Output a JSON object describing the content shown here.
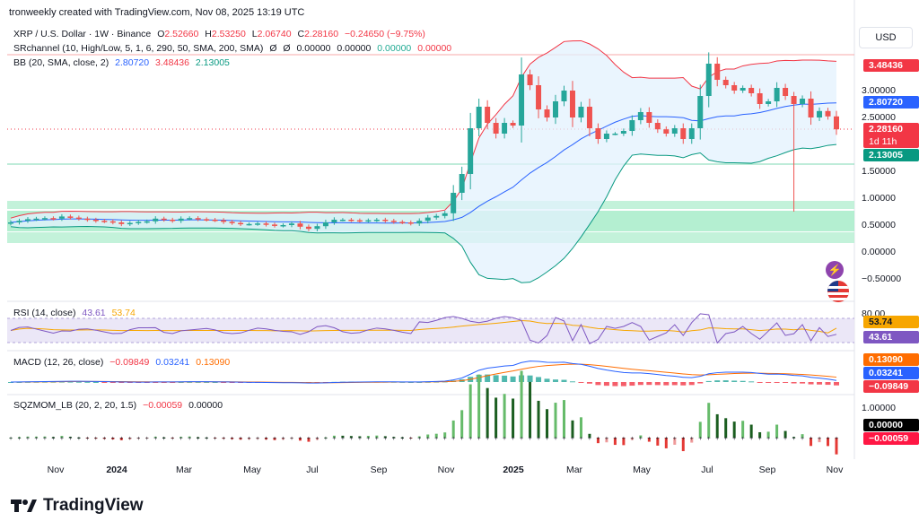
{
  "header": {
    "attribution": "tronweekly created with TradingView.com, Nov 08, 2025 13:19 UTC"
  },
  "legend": {
    "symbol": "XRP / U.S. Dollar · 1W · Binance",
    "ohlc": {
      "o_label": "O",
      "o": "2.52660",
      "h_label": "H",
      "h": "2.53250",
      "l_label": "L",
      "l": "2.06740",
      "c_label": "C",
      "c": "2.28160",
      "change": "−0.24650 (−9.75%)"
    },
    "srchannel": {
      "name": "SRchannel (10, High/Low, 5, 1, 6, 290, 50, SMA, 200, SMA)",
      "v1": "Ø",
      "v2": "Ø",
      "v3": "0.00000",
      "v4": "0.00000",
      "v5": "0.00000",
      "v6": "0.00000"
    },
    "bb": {
      "name": "BB (20, SMA, close, 2)",
      "basis": "2.80720",
      "upper": "3.48436",
      "lower": "2.13005"
    }
  },
  "currency_button": "USD",
  "price_axis": {
    "ticks": [
      "3.00000",
      "2.50000",
      "1.50000",
      "1.00000",
      "0.50000",
      "0.00000",
      "−0.50000"
    ],
    "badges": {
      "upper": "3.48436",
      "basis": "2.80720",
      "price": "2.28160",
      "countdown": "1d 11h",
      "lower": "2.13005"
    }
  },
  "rsi": {
    "label": "RSI (14, close)",
    "value": "43.61",
    "ma": "53.74",
    "tick": "80.00",
    "badge_ma": "53.74",
    "badge_value": "43.61"
  },
  "macd": {
    "label": "MACD (12, 26, close)",
    "hist": "−0.09849",
    "macd": "0.03241",
    "signal": "0.13090",
    "badge_signal": "0.13090",
    "badge_macd": "0.03241",
    "badge_hist": "−0.09849"
  },
  "sqz": {
    "label": "SQZMOM_LB (20, 2, 20, 1.5)",
    "value": "−0.00059",
    "zero": "0.00000",
    "tick": "1.00000",
    "badge_zero": "0.00000",
    "badge_value": "−0.00059"
  },
  "time_axis": {
    "ticks": [
      "Nov",
      "2024",
      "Mar",
      "May",
      "Jul",
      "Sep",
      "Nov",
      "2025",
      "Mar",
      "May",
      "Jul",
      "Sep",
      "Nov"
    ]
  },
  "footer": {
    "brand": "TradingView"
  },
  "colors": {
    "up": "#26a69a",
    "down": "#ef5350",
    "bb_upper": "#f23645",
    "bb_basis": "#2962ff",
    "bb_lower": "#089981",
    "rsi": "#7e57c2",
    "rsi_ma": "#f7a600",
    "macd": "#2962ff",
    "signal": "#ff6d00"
  },
  "chart_data": {
    "type": "candlestick",
    "timeframe": "1W",
    "x_axis_ticks": [
      "Nov",
      "2024",
      "Mar",
      "May",
      "Jul",
      "Sep",
      "Nov",
      "2025",
      "Mar",
      "May",
      "Jul",
      "Sep",
      "Nov"
    ],
    "ylim": [
      -0.6,
      3.8
    ],
    "candles_close": [
      0.55,
      0.58,
      0.61,
      0.62,
      0.63,
      0.62,
      0.66,
      0.64,
      0.62,
      0.6,
      0.58,
      0.57,
      0.55,
      0.52,
      0.54,
      0.56,
      0.57,
      0.62,
      0.6,
      0.58,
      0.62,
      0.63,
      0.61,
      0.6,
      0.59,
      0.56,
      0.54,
      0.52,
      0.52,
      0.53,
      0.51,
      0.49,
      0.5,
      0.53,
      0.47,
      0.43,
      0.48,
      0.55,
      0.6,
      0.6,
      0.59,
      0.58,
      0.59,
      0.6,
      0.58,
      0.56,
      0.55,
      0.53,
      0.58,
      0.64,
      0.67,
      0.72,
      1.1,
      1.45,
      2.3,
      2.7,
      2.4,
      2.2,
      2.4,
      2.35,
      3.3,
      3.1,
      2.65,
      2.5,
      2.8,
      3.0,
      2.5,
      2.7,
      2.3,
      2.1,
      2.2,
      2.2,
      2.25,
      2.45,
      2.6,
      2.4,
      2.28,
      2.2,
      2.3,
      2.1,
      2.3,
      2.9,
      3.5,
      3.2,
      3.1,
      3.0,
      3.05,
      2.95,
      2.75,
      2.8,
      3.05,
      2.9,
      2.75,
      2.85,
      2.5,
      2.62,
      2.52,
      2.28
    ],
    "bb": {
      "upper_last": 3.48436,
      "basis_last": 2.8072,
      "lower_last": 2.13005
    },
    "rsi": {
      "value": 43.61,
      "ma": 53.74
    },
    "macd": {
      "hist": -0.09849,
      "macd": 0.03241,
      "signal": 0.1309
    },
    "sqzmom": {
      "value": -0.00059
    }
  }
}
